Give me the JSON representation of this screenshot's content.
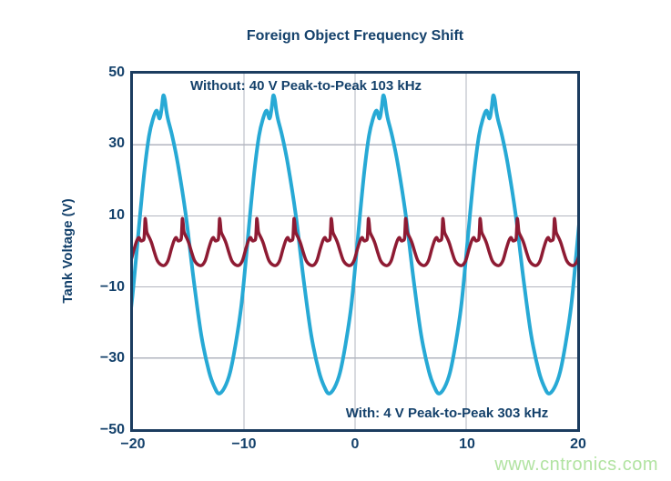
{
  "title": "Foreign Object Frequency Shift",
  "watermark": "www.cntronics.com",
  "colors": {
    "navy_text": "#14416b",
    "plot_border": "#1b3c5f",
    "grid": "#b2b5bf",
    "cyan_wave": "#27a9d5",
    "crimson_wave": "#8e1b33",
    "watermark_green": "#b1e3a1",
    "background": "#ffffff"
  },
  "y_axis": {
    "label": "Tank Voltage (V)",
    "tick_labels": [
      "50",
      "30",
      "10",
      "−10",
      "−30",
      "−50"
    ]
  },
  "x_axis": {
    "tick_labels": [
      "−20",
      "−10",
      "0",
      "10",
      "20"
    ]
  },
  "chart_data": {
    "type": "line",
    "title": "Foreign Object Frequency Shift",
    "xlabel": "",
    "ylabel": "Tank Voltage (V)",
    "xlim": [
      -20,
      20
    ],
    "ylim": [
      -50,
      50
    ],
    "x_ticks": [
      -20,
      -10,
      0,
      10,
      20
    ],
    "y_ticks": [
      -50,
      -30,
      -10,
      10,
      30,
      50
    ],
    "grid": true,
    "gridline_x_values": [
      -10,
      0,
      10
    ],
    "gridline_y_values": [
      -30,
      -10,
      10,
      30
    ],
    "legend_position": "none",
    "annotations": [
      {
        "id": "without",
        "text": "Without: 40 V Peak-to-Peak 103 kHz",
        "location": "top-left-center inside plot"
      },
      {
        "id": "with",
        "text": "With: 4 V Peak-to-Peak 303 kHz",
        "location": "bottom-right inside plot"
      }
    ],
    "series": [
      {
        "name": "tank-voltage-without-foreign-object",
        "label": "Without: 40 V Peak-to-Peak 103 kHz",
        "stated_peak_to_peak_v": 40,
        "stated_frequency_khz": 103,
        "observed_peak_v": 44,
        "observed_trough_v": -40,
        "color_key": "cyan_wave",
        "stroke_width": 4,
        "model": {
          "kind": "periodic-keypoints",
          "period": 9.9,
          "anchor_x": -17.15,
          "keypoints": [
            [
              -5.0,
              -40
            ],
            [
              -4.5,
              -38.3
            ],
            [
              -4.0,
              -34
            ],
            [
              -3.5,
              -26
            ],
            [
              -3.0,
              -15.5
            ],
            [
              -2.6,
              -3
            ],
            [
              -2.2,
              10.5
            ],
            [
              -1.8,
              23
            ],
            [
              -1.4,
              32.5
            ],
            [
              -1.05,
              37.2
            ],
            [
              -0.72,
              39.6
            ],
            [
              -0.45,
              37.4
            ],
            [
              -0.26,
              40.3
            ],
            [
              -0.12,
              43.8
            ],
            [
              0.02,
              42.8
            ],
            [
              0.16,
              39.6
            ],
            [
              0.32,
              37.0
            ],
            [
              0.7,
              32.3
            ],
            [
              1.2,
              24.5
            ],
            [
              1.9,
              10.5
            ],
            [
              2.6,
              -7.5
            ],
            [
              3.3,
              -23.5
            ],
            [
              4.0,
              -33.8
            ],
            [
              4.5,
              -38.2
            ]
          ]
        }
      },
      {
        "name": "tank-voltage-with-foreign-object",
        "label": "With: 4 V Peak-to-Peak 303 kHz",
        "stated_peak_to_peak_v": 4,
        "stated_frequency_khz": 303,
        "observed_peak_v": 9.2,
        "observed_trough_v": -3.9,
        "color_key": "crimson_wave",
        "stroke_width": 3.5,
        "model": {
          "kind": "periodic-keypoints",
          "period": 3.35,
          "anchor_x": -18.9,
          "keypoints": [
            [
              -1.6,
              -3.9
            ],
            [
              -1.28,
              -2.5
            ],
            [
              -0.98,
              0.8
            ],
            [
              -0.74,
              3.1
            ],
            [
              -0.56,
              3.9
            ],
            [
              -0.4,
              3.0
            ],
            [
              -0.22,
              3.1
            ],
            [
              -0.1,
              3.6
            ],
            [
              -0.04,
              6.8
            ],
            [
              0.0,
              9.2
            ],
            [
              0.06,
              8.2
            ],
            [
              0.14,
              5.6
            ],
            [
              0.26,
              4.6
            ],
            [
              0.42,
              3.6
            ],
            [
              0.6,
              2.2
            ],
            [
              0.85,
              -0.4
            ],
            [
              1.1,
              -2.6
            ],
            [
              1.4,
              -3.7
            ]
          ]
        }
      }
    ]
  }
}
